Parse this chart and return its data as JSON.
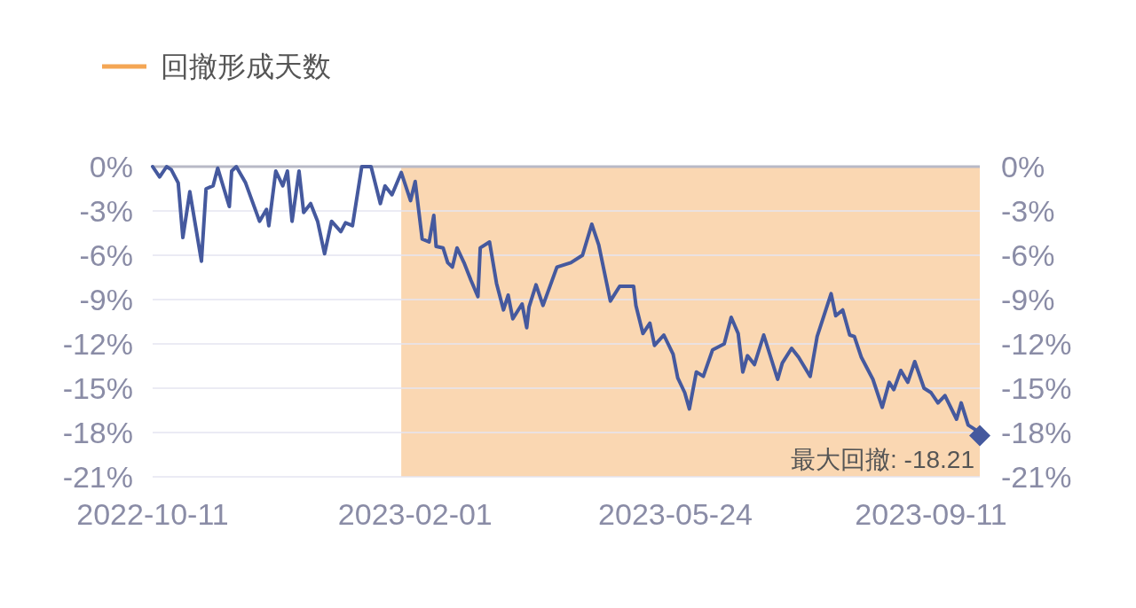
{
  "chart_data": {
    "type": "line",
    "x": [
      "2022-10-11",
      "2022-10-14",
      "2022-10-17",
      "2022-10-19",
      "2022-10-22",
      "2022-10-24",
      "2022-10-27",
      "2022-11-01",
      "2022-11-03",
      "2022-11-06",
      "2022-11-08",
      "2022-11-13",
      "2022-11-14",
      "2022-11-16",
      "2022-11-20",
      "2022-11-26",
      "2022-11-29",
      "2022-11-30",
      "2022-12-03",
      "2022-12-06",
      "2022-12-08",
      "2022-12-10",
      "2022-12-13",
      "2022-12-15",
      "2022-12-18",
      "2022-12-21",
      "2022-12-24",
      "2022-12-27",
      "2022-12-31",
      "2023-01-02",
      "2023-01-05",
      "2023-01-09",
      "2023-01-13",
      "2023-01-17",
      "2023-01-19",
      "2023-01-22",
      "2023-01-26",
      "2023-01-30",
      "2023-02-01",
      "2023-02-04",
      "2023-02-07",
      "2023-02-09",
      "2023-02-10",
      "2023-02-13",
      "2023-02-15",
      "2023-02-17",
      "2023-02-19",
      "2023-02-22",
      "2023-02-25",
      "2023-02-28",
      "2023-03-01",
      "2023-03-05",
      "2023-03-08",
      "2023-03-11",
      "2023-03-13",
      "2023-03-15",
      "2023-03-19",
      "2023-03-21",
      "2023-03-22",
      "2023-03-25",
      "2023-03-28",
      "2023-04-03",
      "2023-04-09",
      "2023-04-14",
      "2023-04-18",
      "2023-04-21",
      "2023-04-26",
      "2023-04-30",
      "2023-05-06",
      "2023-05-07",
      "2023-05-10",
      "2023-05-13",
      "2023-05-15",
      "2023-05-19",
      "2023-05-23",
      "2023-05-25",
      "2023-05-28",
      "2023-05-30",
      "2023-06-02",
      "2023-06-05",
      "2023-06-09",
      "2023-06-14",
      "2023-06-17",
      "2023-06-20",
      "2023-06-22",
      "2023-06-24",
      "2023-06-27",
      "2023-07-01",
      "2023-07-07",
      "2023-07-09",
      "2023-07-13",
      "2023-07-16",
      "2023-07-21",
      "2023-07-24",
      "2023-07-30",
      "2023-08-01",
      "2023-08-04",
      "2023-08-07",
      "2023-08-09",
      "2023-08-12",
      "2023-08-17",
      "2023-08-21",
      "2023-08-24",
      "2023-08-26",
      "2023-08-29",
      "2023-09-01",
      "2023-09-04",
      "2023-09-08",
      "2023-09-11",
      "2023-09-14",
      "2023-09-17",
      "2023-09-22",
      "2023-09-24",
      "2023-09-27",
      "2023-09-30",
      "2023-10-02"
    ],
    "series": [
      {
        "color": "#45599e",
        "values": [
          0,
          -0.7,
          0,
          -0.2,
          -1.1,
          -4.8,
          -1.7,
          -6.4,
          -1.5,
          -1.3,
          -0.1,
          -2.7,
          -0.3,
          0,
          -1.1,
          -3.7,
          -2.9,
          -4.0,
          -0.3,
          -1.3,
          -0.3,
          -3.7,
          -0.3,
          -3.1,
          -2.5,
          -3.7,
          -5.9,
          -3.7,
          -4.4,
          -3.8,
          -4.0,
          0,
          0,
          -2.5,
          -1.3,
          -1.9,
          -0.4,
          -2.3,
          -1.0,
          -4.9,
          -5.1,
          -3.3,
          -5.4,
          -5.5,
          -6.5,
          -6.8,
          -5.5,
          -6.5,
          -7.7,
          -8.8,
          -5.5,
          -5.1,
          -7.9,
          -9.7,
          -8.7,
          -10.3,
          -9.3,
          -10.9,
          -9.5,
          -8.0,
          -9.4,
          -6.8,
          -6.5,
          -6.0,
          -3.9,
          -5.3,
          -9.1,
          -8.1,
          -8.1,
          -9.4,
          -11.3,
          -10.6,
          -12.1,
          -11.4,
          -12.7,
          -14.3,
          -15.3,
          -16.4,
          -13.9,
          -14.2,
          -12.4,
          -12.0,
          -10.2,
          -11.3,
          -13.9,
          -12.8,
          -13.4,
          -11.4,
          -14.4,
          -13.3,
          -12.3,
          -12.9,
          -14.2,
          -11.5,
          -8.6,
          -10.1,
          -9.7,
          -11.4,
          -11.5,
          -12.9,
          -14.4,
          -16.3,
          -14.6,
          -15.1,
          -13.8,
          -14.6,
          -13.2,
          -15.0,
          -15.3,
          -16.0,
          -15.5,
          -17.1,
          -16.0,
          -17.5,
          -17.8,
          -18.21
        ]
      }
    ],
    "xlim": [
      "2022-10-11",
      "2023-10-02"
    ],
    "xticks": [
      "2022-10-11",
      "2023-02-01",
      "2023-05-24",
      "2023-09-11"
    ],
    "ylim": [
      -21,
      0
    ],
    "yticks": [
      {
        "value": 0,
        "label": "0%"
      },
      {
        "value": -3,
        "label": "-3%"
      },
      {
        "value": -6,
        "label": "-6%"
      },
      {
        "value": -9,
        "label": "-9%"
      },
      {
        "value": -12,
        "label": "-12%"
      },
      {
        "value": -15,
        "label": "-15%"
      },
      {
        "value": -18,
        "label": "-18%"
      },
      {
        "value": -21,
        "label": "-21%"
      }
    ],
    "y2lim": [
      -21,
      0
    ],
    "y2ticks": [
      {
        "value": 0,
        "label": "0%"
      },
      {
        "value": -3,
        "label": "-3%"
      },
      {
        "value": -6,
        "label": "-6%"
      },
      {
        "value": -9,
        "label": "-9%"
      },
      {
        "value": -12,
        "label": "-12%"
      },
      {
        "value": -15,
        "label": "-15%"
      },
      {
        "value": -18,
        "label": "-18%"
      },
      {
        "value": -21,
        "label": "-21%"
      }
    ],
    "grid": "y",
    "bands": [
      {
        "axis": "x",
        "from": "2023-01-26",
        "to": "2023-10-02",
        "label": "回撤形成天数",
        "color": "#f4a654"
      }
    ],
    "legend": "top left",
    "annotations": [
      {
        "text": "最大回撤: -18.21",
        "x": "2023-10-02",
        "y": -18.21
      }
    ]
  }
}
